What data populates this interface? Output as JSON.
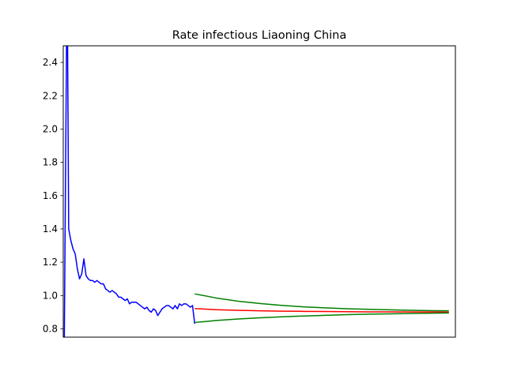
{
  "chart_data": {
    "type": "line",
    "title": "Rate infectious Liaoning China",
    "xlabel": "",
    "ylabel": "",
    "x_ticks_visible": false,
    "ylim": [
      0.75,
      2.5
    ],
    "yticks": [
      "0.8",
      "1.0",
      "1.2",
      "1.4",
      "1.6",
      "1.8",
      "2.0",
      "2.2",
      "2.4"
    ],
    "xlim": [
      -0.5,
      180
    ],
    "grid": false,
    "series": [
      {
        "color": "#0000ff",
        "points": [
          [
            0,
            0.75
          ],
          [
            1,
            2.5
          ],
          [
            1.5,
            2.5
          ],
          [
            2,
            1.4
          ],
          [
            3,
            1.33
          ],
          [
            4,
            1.28
          ],
          [
            5,
            1.25
          ],
          [
            6,
            1.16
          ],
          [
            7,
            1.1
          ],
          [
            8,
            1.13
          ],
          [
            9,
            1.22
          ],
          [
            10,
            1.12
          ],
          [
            11,
            1.1
          ],
          [
            12,
            1.09
          ],
          [
            13,
            1.09
          ],
          [
            14,
            1.08
          ],
          [
            15,
            1.09
          ],
          [
            16,
            1.08
          ],
          [
            17,
            1.07
          ],
          [
            18,
            1.07
          ],
          [
            19,
            1.04
          ],
          [
            20,
            1.03
          ],
          [
            21,
            1.02
          ],
          [
            22,
            1.03
          ],
          [
            23,
            1.02
          ],
          [
            24,
            1.01
          ],
          [
            25,
            0.99
          ],
          [
            26,
            0.99
          ],
          [
            27,
            0.98
          ],
          [
            28,
            0.97
          ],
          [
            29,
            0.98
          ],
          [
            30,
            0.95
          ],
          [
            31,
            0.96
          ],
          [
            32,
            0.96
          ],
          [
            33,
            0.96
          ],
          [
            34,
            0.95
          ],
          [
            35,
            0.94
          ],
          [
            36,
            0.93
          ],
          [
            37,
            0.92
          ],
          [
            38,
            0.93
          ],
          [
            39,
            0.91
          ],
          [
            40,
            0.9
          ],
          [
            41,
            0.92
          ],
          [
            42,
            0.91
          ],
          [
            43,
            0.88
          ],
          [
            44,
            0.9
          ],
          [
            45,
            0.92
          ],
          [
            46,
            0.93
          ],
          [
            47,
            0.94
          ],
          [
            48,
            0.94
          ],
          [
            49,
            0.93
          ],
          [
            50,
            0.92
          ],
          [
            51,
            0.94
          ],
          [
            52,
            0.92
          ],
          [
            53,
            0.95
          ],
          [
            54,
            0.94
          ],
          [
            55,
            0.95
          ],
          [
            56,
            0.95
          ],
          [
            57,
            0.94
          ],
          [
            58,
            0.93
          ],
          [
            59,
            0.94
          ],
          [
            60,
            0.83
          ]
        ]
      },
      {
        "color": "#ff0000",
        "points": [
          [
            60,
            0.922
          ],
          [
            70,
            0.915
          ],
          [
            80,
            0.911
          ],
          [
            90,
            0.908
          ],
          [
            100,
            0.906
          ],
          [
            110,
            0.905
          ],
          [
            120,
            0.904
          ],
          [
            130,
            0.903
          ],
          [
            140,
            0.902
          ],
          [
            150,
            0.902
          ],
          [
            160,
            0.901
          ],
          [
            170,
            0.901
          ],
          [
            177,
            0.9
          ]
        ]
      },
      {
        "color": "#008000",
        "points": [
          [
            60,
            1.01
          ],
          [
            70,
            0.985
          ],
          [
            80,
            0.966
          ],
          [
            90,
            0.952
          ],
          [
            100,
            0.941
          ],
          [
            110,
            0.932
          ],
          [
            120,
            0.926
          ],
          [
            130,
            0.921
          ],
          [
            140,
            0.917
          ],
          [
            150,
            0.914
          ],
          [
            160,
            0.911
          ],
          [
            170,
            0.909
          ],
          [
            177,
            0.908
          ]
        ]
      },
      {
        "color": "#008000",
        "points": [
          [
            60,
            0.838
          ],
          [
            70,
            0.85
          ],
          [
            80,
            0.859
          ],
          [
            90,
            0.866
          ],
          [
            100,
            0.872
          ],
          [
            110,
            0.877
          ],
          [
            120,
            0.881
          ],
          [
            130,
            0.885
          ],
          [
            140,
            0.888
          ],
          [
            150,
            0.89
          ],
          [
            160,
            0.892
          ],
          [
            170,
            0.894
          ],
          [
            177,
            0.895
          ]
        ]
      }
    ]
  }
}
